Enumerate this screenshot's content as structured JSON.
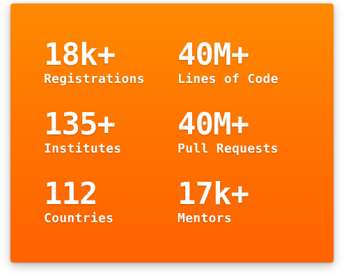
{
  "stats": {
    "items": [
      {
        "value": "18k+",
        "label": "Registrations"
      },
      {
        "value": "40M+",
        "label": "Lines of Code"
      },
      {
        "value": "135+",
        "label": "Institutes"
      },
      {
        "value": "40M+",
        "label": "Pull Requests"
      },
      {
        "value": "112",
        "label": "Countries"
      },
      {
        "value": "17k+",
        "label": "Mentors"
      }
    ]
  },
  "colors": {
    "card_top": "#ff8a00",
    "card_bottom": "#ff6200",
    "text": "#ffffff"
  }
}
